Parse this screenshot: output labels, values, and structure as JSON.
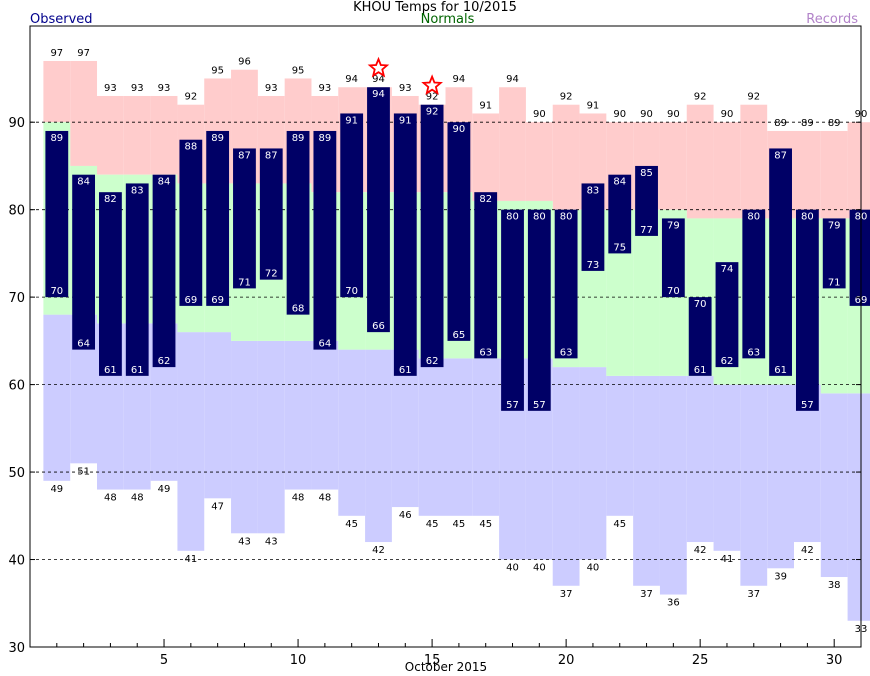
{
  "header": {
    "title": "KHOU Temps for 10/2015",
    "observed_label": "Observed",
    "normals_label": "Normals",
    "records_label": "Records"
  },
  "chart_data": {
    "type": "bar",
    "xlabel": "October 2015",
    "ylabel": "",
    "ylim": [
      30,
      101
    ],
    "xlim": [
      0.5,
      31.5
    ],
    "yticks": [
      30,
      40,
      50,
      60,
      70,
      80,
      90
    ],
    "xticks": [
      5,
      10,
      15,
      20,
      25,
      30
    ],
    "gridlines_y": [
      40,
      50,
      60,
      70,
      80,
      90
    ],
    "days": [
      1,
      2,
      3,
      4,
      5,
      6,
      7,
      8,
      9,
      10,
      11,
      12,
      13,
      14,
      15,
      16,
      17,
      18,
      19,
      20,
      21,
      22,
      23,
      24,
      25,
      26,
      27,
      28,
      29,
      30,
      31
    ],
    "observed_high": [
      89,
      84,
      82,
      83,
      84,
      88,
      89,
      87,
      87,
      89,
      89,
      91,
      94,
      91,
      92,
      90,
      82,
      80,
      80,
      80,
      83,
      84,
      85,
      79,
      70,
      74,
      80,
      87,
      80,
      79,
      80
    ],
    "observed_low": [
      70,
      64,
      61,
      61,
      62,
      69,
      69,
      71,
      72,
      68,
      64,
      70,
      66,
      61,
      62,
      65,
      63,
      57,
      57,
      63,
      73,
      75,
      77,
      70,
      61,
      62,
      63,
      61,
      57,
      71,
      69
    ],
    "normal_high": [
      90,
      85,
      84,
      84,
      84,
      83,
      83,
      83,
      83,
      83,
      82,
      82,
      82,
      82,
      82,
      82,
      81,
      81,
      81,
      80,
      80,
      80,
      80,
      80,
      79,
      79,
      79,
      79,
      79,
      79,
      79
    ],
    "normal_low": [
      68,
      68,
      67,
      67,
      67,
      66,
      66,
      65,
      65,
      65,
      65,
      64,
      64,
      64,
      63,
      63,
      63,
      63,
      63,
      62,
      62,
      61,
      61,
      61,
      61,
      60,
      60,
      60,
      60,
      59,
      59
    ],
    "record_high": [
      97,
      97,
      93,
      93,
      93,
      92,
      95,
      96,
      93,
      95,
      93,
      94,
      94,
      93,
      92,
      94,
      91,
      94,
      90,
      92,
      91,
      90,
      90,
      90,
      92,
      90,
      92,
      89,
      89,
      89,
      90
    ],
    "record_low": [
      49,
      51,
      48,
      48,
      49,
      41,
      47,
      43,
      43,
      48,
      48,
      45,
      42,
      46,
      45,
      45,
      45,
      40,
      40,
      37,
      40,
      45,
      37,
      36,
      42,
      41,
      37,
      39,
      42,
      38,
      33
    ],
    "new_record_high_days": [
      13,
      15
    ],
    "colors": {
      "observed": "#000066",
      "observed_label": "#ffffff",
      "normal": "#ccffcc",
      "record_high": "#ffcccc",
      "record_low": "#ccccff",
      "new_record_star": "#ff0000"
    }
  }
}
